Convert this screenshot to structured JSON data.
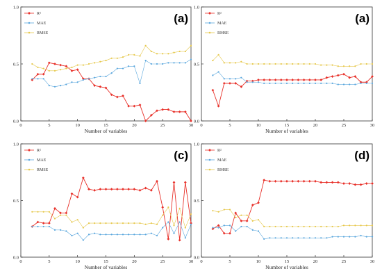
{
  "chart_data": [
    {
      "type": "line",
      "panel_label": "(a)",
      "xlabel": "Number of variables",
      "xlim": [
        0,
        30
      ],
      "ylim": [
        0.0,
        1.0
      ],
      "xticks": [
        "0",
        "5",
        "10",
        "15",
        "20",
        "25",
        "30"
      ],
      "yticks": [
        "0.0",
        "0.5",
        "1.0"
      ],
      "legend_position": "top-left",
      "x": [
        2,
        3,
        4,
        5,
        6,
        7,
        8,
        9,
        10,
        11,
        12,
        13,
        14,
        15,
        16,
        17,
        18,
        19,
        20,
        21,
        22,
        23,
        24,
        25,
        26,
        27,
        28,
        29,
        30
      ],
      "series": [
        {
          "name": "R²",
          "color": "#e8312a",
          "marker": "diamond",
          "values": [
            0.36,
            0.41,
            0.41,
            0.51,
            0.5,
            0.49,
            0.48,
            0.44,
            0.45,
            0.37,
            0.37,
            0.31,
            0.3,
            0.29,
            0.23,
            0.21,
            0.22,
            0.13,
            0.13,
            0.14,
            0.0,
            0.05,
            0.09,
            0.1,
            0.1,
            0.08,
            0.08,
            0.08,
            0.0
          ]
        },
        {
          "name": "MAE",
          "color": "#5ba7dd",
          "marker": "circle",
          "values": [
            0.37,
            0.37,
            0.37,
            0.31,
            0.3,
            0.31,
            0.32,
            0.34,
            0.34,
            0.36,
            0.37,
            0.38,
            0.39,
            0.39,
            0.42,
            0.46,
            0.46,
            0.48,
            0.48,
            0.33,
            0.53,
            0.5,
            0.5,
            0.5,
            0.51,
            0.51,
            0.51,
            0.51,
            0.54
          ]
        },
        {
          "name": "RMSE",
          "color": "#e6c84c",
          "marker": "circle",
          "values": [
            0.5,
            0.47,
            0.46,
            0.44,
            0.44,
            0.45,
            0.46,
            0.47,
            0.49,
            0.49,
            0.5,
            0.51,
            0.52,
            0.53,
            0.55,
            0.55,
            0.56,
            0.58,
            0.58,
            0.57,
            0.66,
            0.61,
            0.59,
            0.59,
            0.59,
            0.6,
            0.61,
            0.61,
            0.66
          ]
        }
      ]
    },
    {
      "type": "line",
      "panel_label": "(a)",
      "xlabel": "Number of variables",
      "xlim": [
        0,
        30
      ],
      "ylim": [
        0.0,
        1.0
      ],
      "xticks": [
        "0",
        "5",
        "10",
        "15",
        "20",
        "25",
        "30"
      ],
      "yticks": [
        "0.0",
        "0.5",
        "1.0"
      ],
      "legend_position": "top-left",
      "x": [
        2,
        3,
        4,
        5,
        6,
        7,
        8,
        9,
        10,
        11,
        12,
        13,
        14,
        15,
        16,
        17,
        18,
        19,
        20,
        21,
        22,
        23,
        24,
        25,
        26,
        27,
        28,
        29,
        30
      ],
      "series": [
        {
          "name": "R²",
          "color": "#e8312a",
          "marker": "diamond",
          "values": [
            0.27,
            0.13,
            0.33,
            0.33,
            0.33,
            0.3,
            0.35,
            0.35,
            0.36,
            0.36,
            0.36,
            0.36,
            0.36,
            0.36,
            0.36,
            0.36,
            0.36,
            0.36,
            0.36,
            0.36,
            0.38,
            0.39,
            0.4,
            0.41,
            0.38,
            0.39,
            0.34,
            0.34,
            0.39
          ]
        },
        {
          "name": "MAE",
          "color": "#5ba7dd",
          "marker": "circle",
          "values": [
            0.4,
            0.43,
            0.37,
            0.37,
            0.37,
            0.38,
            0.34,
            0.34,
            0.34,
            0.33,
            0.33,
            0.33,
            0.33,
            0.33,
            0.33,
            0.33,
            0.33,
            0.33,
            0.33,
            0.33,
            0.33,
            0.33,
            0.32,
            0.32,
            0.32,
            0.32,
            0.33,
            0.33,
            0.33
          ]
        },
        {
          "name": "RMSE",
          "color": "#e6c84c",
          "marker": "circle",
          "values": [
            0.53,
            0.58,
            0.51,
            0.51,
            0.51,
            0.52,
            0.5,
            0.5,
            0.5,
            0.5,
            0.5,
            0.5,
            0.5,
            0.5,
            0.5,
            0.5,
            0.5,
            0.5,
            0.5,
            0.49,
            0.49,
            0.49,
            0.48,
            0.48,
            0.48,
            0.48,
            0.5,
            0.5,
            0.5
          ]
        }
      ]
    },
    {
      "type": "line",
      "panel_label": "(c)",
      "xlabel": "Number of variables",
      "xlim": [
        0,
        30
      ],
      "ylim": [
        0.0,
        1.0
      ],
      "xticks": [
        "0",
        "5",
        "10",
        "15",
        "20",
        "25",
        "30"
      ],
      "yticks": [
        "0.0",
        "0.5",
        "1.0"
      ],
      "legend_position": "top-left",
      "x": [
        2,
        3,
        4,
        5,
        6,
        7,
        8,
        9,
        10,
        11,
        12,
        13,
        14,
        15,
        16,
        17,
        18,
        19,
        20,
        21,
        22,
        23,
        24,
        25,
        26,
        27,
        28,
        29,
        30
      ],
      "series": [
        {
          "name": "R²",
          "color": "#e8312a",
          "marker": "diamond",
          "values": [
            0.27,
            0.31,
            0.3,
            0.3,
            0.43,
            0.39,
            0.39,
            0.56,
            0.53,
            0.7,
            0.6,
            0.59,
            0.6,
            0.6,
            0.6,
            0.6,
            0.6,
            0.6,
            0.6,
            0.59,
            0.61,
            0.59,
            0.67,
            0.44,
            0.16,
            0.66,
            0.15,
            0.66,
            0.3
          ]
        },
        {
          "name": "MAE",
          "color": "#5ba7dd",
          "marker": "circle",
          "values": [
            0.27,
            0.27,
            0.27,
            0.27,
            0.24,
            0.24,
            0.23,
            0.19,
            0.21,
            0.15,
            0.2,
            0.21,
            0.2,
            0.2,
            0.2,
            0.2,
            0.2,
            0.2,
            0.2,
            0.2,
            0.2,
            0.21,
            0.19,
            0.26,
            0.31,
            0.21,
            0.31,
            0.17,
            0.29
          ]
        },
        {
          "name": "RMSE",
          "color": "#e6c84c",
          "marker": "circle",
          "values": [
            0.4,
            0.4,
            0.4,
            0.4,
            0.34,
            0.37,
            0.37,
            0.31,
            0.33,
            0.26,
            0.3,
            0.3,
            0.3,
            0.3,
            0.3,
            0.3,
            0.3,
            0.3,
            0.3,
            0.3,
            0.29,
            0.3,
            0.29,
            0.37,
            0.44,
            0.28,
            0.43,
            0.26,
            0.38
          ]
        }
      ]
    },
    {
      "type": "line",
      "panel_label": "(d)",
      "xlabel": "Number of variables",
      "xlim": [
        0,
        30
      ],
      "ylim": [
        0.0,
        1.0
      ],
      "xticks": [
        "0",
        "5",
        "10",
        "15",
        "20",
        "25",
        "30"
      ],
      "yticks": [
        "0.0",
        "0.5",
        "1.0"
      ],
      "legend_position": "top-left",
      "x": [
        2,
        3,
        4,
        5,
        6,
        7,
        8,
        9,
        10,
        11,
        12,
        13,
        14,
        15,
        16,
        17,
        18,
        19,
        20,
        21,
        22,
        23,
        24,
        25,
        26,
        27,
        28,
        29,
        30
      ],
      "series": [
        {
          "name": "R²",
          "color": "#e8312a",
          "marker": "diamond",
          "values": [
            0.25,
            0.28,
            0.21,
            0.21,
            0.39,
            0.32,
            0.32,
            0.46,
            0.48,
            0.68,
            0.67,
            0.67,
            0.67,
            0.67,
            0.67,
            0.67,
            0.67,
            0.67,
            0.67,
            0.66,
            0.66,
            0.66,
            0.66,
            0.65,
            0.65,
            0.64,
            0.64,
            0.65,
            0.65
          ]
        },
        {
          "name": "MAE",
          "color": "#5ba7dd",
          "marker": "circle",
          "values": [
            0.26,
            0.26,
            0.28,
            0.28,
            0.23,
            0.27,
            0.27,
            0.24,
            0.23,
            0.16,
            0.17,
            0.17,
            0.17,
            0.17,
            0.17,
            0.17,
            0.17,
            0.17,
            0.17,
            0.17,
            0.17,
            0.18,
            0.18,
            0.18,
            0.18,
            0.18,
            0.19,
            0.18,
            0.18
          ]
        },
        {
          "name": "RMSE",
          "color": "#e6c84c",
          "marker": "circle",
          "values": [
            0.41,
            0.4,
            0.42,
            0.42,
            0.35,
            0.37,
            0.37,
            0.32,
            0.33,
            0.27,
            0.27,
            0.27,
            0.27,
            0.27,
            0.27,
            0.27,
            0.27,
            0.27,
            0.27,
            0.27,
            0.27,
            0.27,
            0.27,
            0.28,
            0.28,
            0.28,
            0.28,
            0.28,
            0.28
          ]
        }
      ]
    }
  ]
}
